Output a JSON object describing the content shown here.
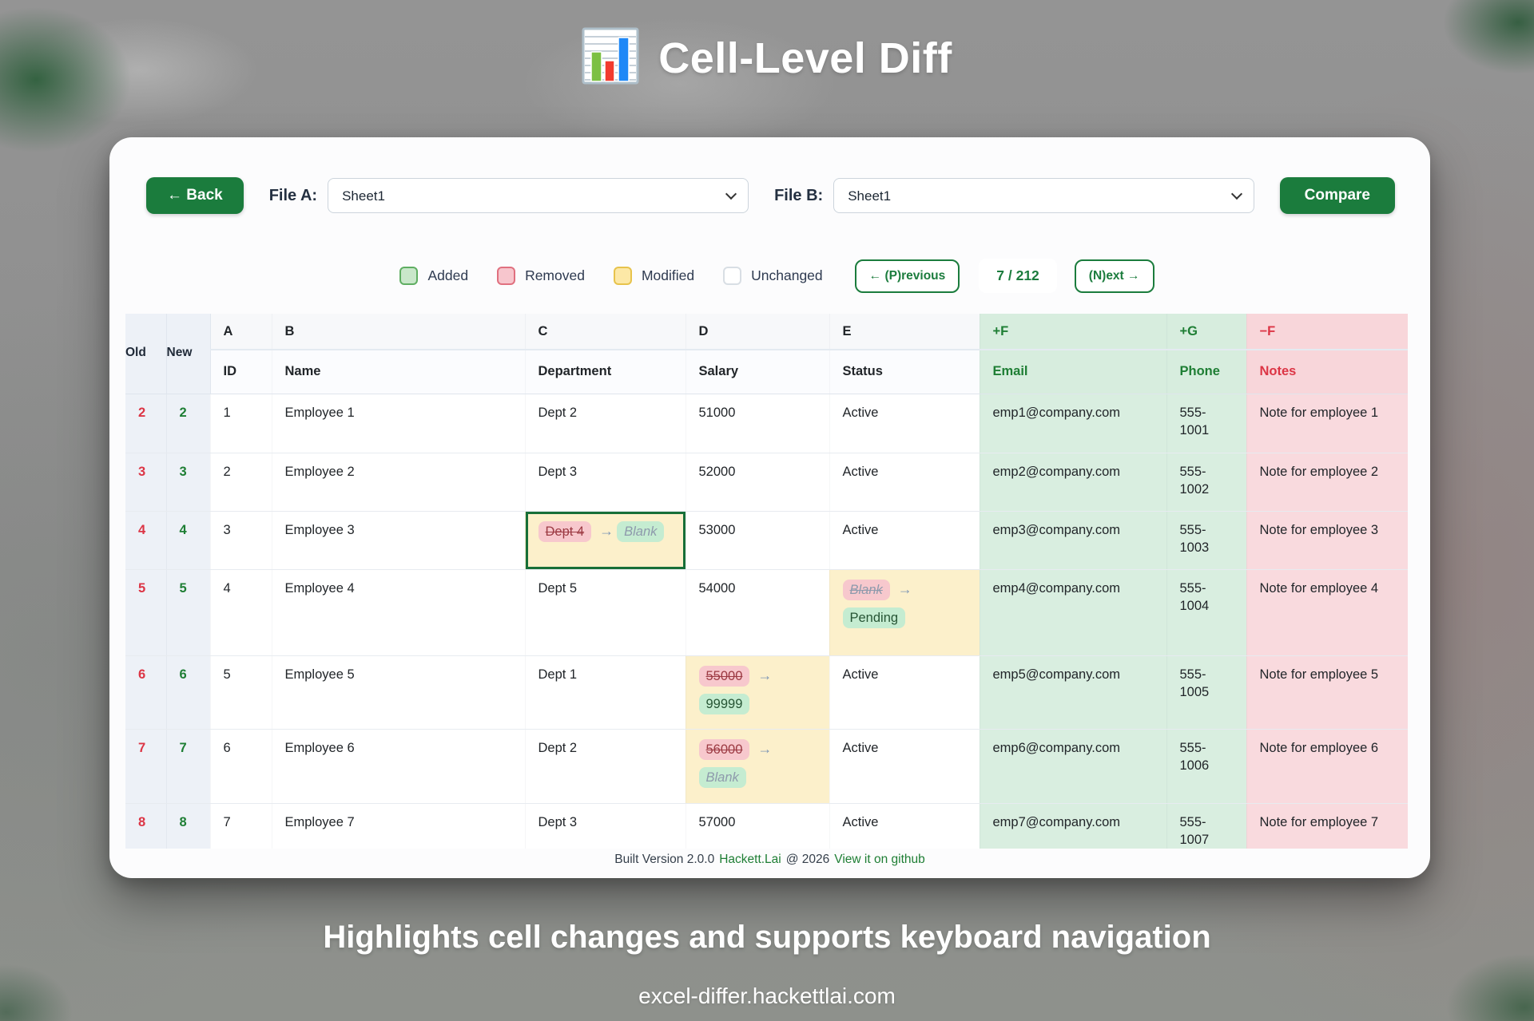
{
  "title": {
    "text": "Cell-Level Diff",
    "icon": "bar-chart-icon"
  },
  "toolbar": {
    "back_label": "← Back",
    "file_a_label": "File A:",
    "file_a_selected": "Sheet1",
    "file_b_label": "File B:",
    "file_b_selected": "Sheet1",
    "compare_label": "Compare"
  },
  "legend": {
    "items": [
      {
        "label": "Added",
        "fill": "#c9e7ca",
        "border": "#5fae62"
      },
      {
        "label": "Removed",
        "fill": "#f7c6cd",
        "border": "#e0707f"
      },
      {
        "label": "Modified",
        "fill": "#fce8a6",
        "border": "#e7c34c"
      },
      {
        "label": "Unchanged",
        "fill": "#ffffff",
        "border": "#d8dee4"
      }
    ],
    "prev_label": "← (P)revious",
    "counter": "7 / 212",
    "next_label": "(N)ext →"
  },
  "table": {
    "corner": {
      "old": "Old",
      "new": "New"
    },
    "arrow": "→",
    "columns": [
      {
        "letter": "A",
        "name": "ID",
        "type": "normal"
      },
      {
        "letter": "B",
        "name": "Name",
        "type": "normal"
      },
      {
        "letter": "C",
        "name": "Department",
        "type": "normal"
      },
      {
        "letter": "D",
        "name": "Salary",
        "type": "normal"
      },
      {
        "letter": "E",
        "name": "Status",
        "type": "normal"
      },
      {
        "letter": "+F",
        "name": "Email",
        "type": "added"
      },
      {
        "letter": "+G",
        "name": "Phone",
        "type": "added"
      },
      {
        "letter": "−F",
        "name": "Notes",
        "type": "removed"
      }
    ],
    "rows": [
      {
        "old": "2",
        "new": "2",
        "cells": [
          {
            "t": "plain",
            "v": "1"
          },
          {
            "t": "plain",
            "v": "Employee 1"
          },
          {
            "t": "plain",
            "v": "Dept 2"
          },
          {
            "t": "plain",
            "v": "51000"
          },
          {
            "t": "plain",
            "v": "Active"
          },
          {
            "t": "added",
            "v": "emp1@company.com"
          },
          {
            "t": "added",
            "v": "555-1001"
          },
          {
            "t": "removed",
            "v": "Note for employee 1"
          }
        ]
      },
      {
        "old": "3",
        "new": "3",
        "cells": [
          {
            "t": "plain",
            "v": "2"
          },
          {
            "t": "plain",
            "v": "Employee 2"
          },
          {
            "t": "plain",
            "v": "Dept 3"
          },
          {
            "t": "plain",
            "v": "52000"
          },
          {
            "t": "plain",
            "v": "Active"
          },
          {
            "t": "added",
            "v": "emp2@company.com"
          },
          {
            "t": "added",
            "v": "555-1002"
          },
          {
            "t": "removed",
            "v": "Note for employee 2"
          }
        ]
      },
      {
        "old": "4",
        "new": "4",
        "cells": [
          {
            "t": "plain",
            "v": "3"
          },
          {
            "t": "plain",
            "v": "Employee 3"
          },
          {
            "t": "modified",
            "old": "Dept 4",
            "new": "Blank",
            "new_blank": true,
            "layout": "inline",
            "selected": true
          },
          {
            "t": "plain",
            "v": "53000"
          },
          {
            "t": "plain",
            "v": "Active"
          },
          {
            "t": "added",
            "v": "emp3@company.com"
          },
          {
            "t": "added",
            "v": "555-1003"
          },
          {
            "t": "removed",
            "v": "Note for employee 3"
          }
        ]
      },
      {
        "old": "5",
        "new": "5",
        "cells": [
          {
            "t": "plain",
            "v": "4"
          },
          {
            "t": "plain",
            "v": "Employee 4"
          },
          {
            "t": "plain",
            "v": "Dept 5"
          },
          {
            "t": "plain",
            "v": "54000"
          },
          {
            "t": "modified",
            "old": "Blank",
            "old_blank": true,
            "new": "Pending",
            "layout": "stacked"
          },
          {
            "t": "added",
            "v": "emp4@company.com"
          },
          {
            "t": "added",
            "v": "555-1004"
          },
          {
            "t": "removed",
            "v": "Note for employee 4"
          }
        ]
      },
      {
        "old": "6",
        "new": "6",
        "cells": [
          {
            "t": "plain",
            "v": "5"
          },
          {
            "t": "plain",
            "v": "Employee 5"
          },
          {
            "t": "plain",
            "v": "Dept 1"
          },
          {
            "t": "modified",
            "old": "55000",
            "new": "99999",
            "layout": "stacked"
          },
          {
            "t": "plain",
            "v": "Active"
          },
          {
            "t": "added",
            "v": "emp5@company.com"
          },
          {
            "t": "added",
            "v": "555-1005"
          },
          {
            "t": "removed",
            "v": "Note for employee 5"
          }
        ]
      },
      {
        "old": "7",
        "new": "7",
        "cells": [
          {
            "t": "plain",
            "v": "6"
          },
          {
            "t": "plain",
            "v": "Employee 6"
          },
          {
            "t": "plain",
            "v": "Dept 2"
          },
          {
            "t": "modified",
            "old": "56000",
            "new": "Blank",
            "new_blank": true,
            "layout": "stacked"
          },
          {
            "t": "plain",
            "v": "Active"
          },
          {
            "t": "added",
            "v": "emp6@company.com"
          },
          {
            "t": "added",
            "v": "555-1006"
          },
          {
            "t": "removed",
            "v": "Note for employee 6"
          }
        ]
      },
      {
        "old": "8",
        "new": "8",
        "cells": [
          {
            "t": "plain",
            "v": "7"
          },
          {
            "t": "plain",
            "v": "Employee 7"
          },
          {
            "t": "plain",
            "v": "Dept 3"
          },
          {
            "t": "plain",
            "v": "57000"
          },
          {
            "t": "plain",
            "v": "Active"
          },
          {
            "t": "added",
            "v": "emp7@company.com"
          },
          {
            "t": "added",
            "v": "555-1007"
          },
          {
            "t": "removed",
            "v": "Note for employee 7"
          }
        ]
      }
    ]
  },
  "footer": {
    "built_text": "Built Version 2.0.0",
    "author_link": "Hackett.Lai",
    "year_text": "@ 2026",
    "github_link": "View it on github"
  },
  "caption": {
    "heading": "Highlights cell changes and supports keyboard navigation",
    "url": "excel-differ.hackettlai.com"
  },
  "colors": {
    "accent_green": "#1b7c3d",
    "added_bg": "#d9eee0",
    "removed_bg": "#f9dade",
    "modified_bg": "#fcf0cb",
    "old_row_number": "#dc3545",
    "new_row_number": "#1e7e34"
  }
}
